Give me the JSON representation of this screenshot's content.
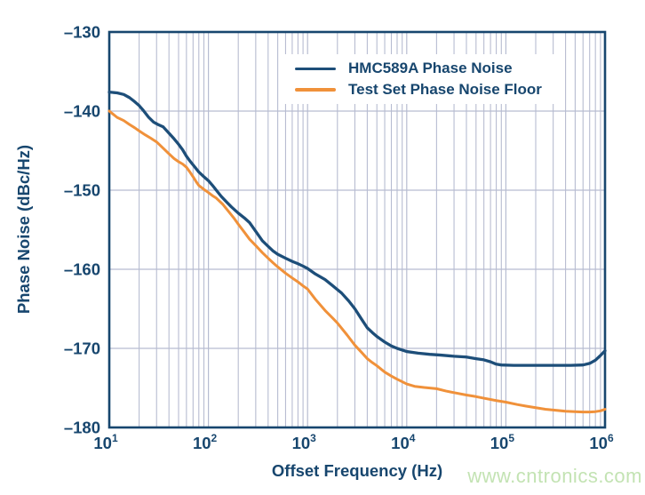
{
  "page": {
    "background": "#ffffff"
  },
  "axes": {
    "y_axis_title": "Phase Noise (dBc/Hz)",
    "x_axis_title": "Offset Frequency (Hz)",
    "y_tick_labels": [
      "–130",
      "–140",
      "–150",
      "–160",
      "–170",
      "–180"
    ],
    "x_tick_labels": [
      {
        "base": "10",
        "exp": "1"
      },
      {
        "base": "10",
        "exp": "2"
      },
      {
        "base": "10",
        "exp": "3"
      },
      {
        "base": "10",
        "exp": "4"
      },
      {
        "base": "10",
        "exp": "5"
      },
      {
        "base": "10",
        "exp": "6"
      }
    ]
  },
  "legend": {
    "items": [
      {
        "label": "HMC589A Phase Noise",
        "color": "#1d4e79"
      },
      {
        "label": "Test Set Phase Noise Floor",
        "color": "#f0913a"
      }
    ]
  },
  "watermark": {
    "text": "www.cntronics.com",
    "color": "#c3e3b3"
  },
  "colors": {
    "axis_navy": "#17466e",
    "curve_navy": "#1d4e79",
    "curve_orange": "#f0913a",
    "gridline": "#b7bcd1",
    "watermark_green": "#c3e3b3"
  },
  "chart_data": {
    "type": "line",
    "title": "",
    "xlabel": "Offset Frequency (Hz)",
    "ylabel": "Phase Noise (dBc/Hz)",
    "x_scale": "log",
    "xlim": [
      10,
      1000000
    ],
    "ylim": [
      -180,
      -130
    ],
    "y_tick_step": 10,
    "grid": true,
    "legend_position": "top-center-inside",
    "series": [
      {
        "name": "HMC589A Phase Noise",
        "color": "#1d4e79",
        "points": [
          [
            10,
            -137.6
          ],
          [
            12,
            -137.7
          ],
          [
            14,
            -137.9
          ],
          [
            16,
            -138.3
          ],
          [
            18,
            -138.8
          ],
          [
            20,
            -139.3
          ],
          [
            22,
            -139.9
          ],
          [
            25,
            -140.8
          ],
          [
            28,
            -141.4
          ],
          [
            31,
            -141.7
          ],
          [
            35,
            -142.0
          ],
          [
            40,
            -142.8
          ],
          [
            45,
            -143.5
          ],
          [
            50,
            -144.2
          ],
          [
            55,
            -144.9
          ],
          [
            60,
            -145.7
          ],
          [
            65,
            -146.3
          ],
          [
            70,
            -146.8
          ],
          [
            80,
            -147.7
          ],
          [
            90,
            -148.3
          ],
          [
            100,
            -148.8
          ],
          [
            110,
            -149.4
          ],
          [
            120,
            -150.0
          ],
          [
            135,
            -150.8
          ],
          [
            150,
            -151.4
          ],
          [
            170,
            -152.1
          ],
          [
            200,
            -152.9
          ],
          [
            230,
            -153.5
          ],
          [
            260,
            -154.1
          ],
          [
            300,
            -155.2
          ],
          [
            350,
            -156.4
          ],
          [
            400,
            -157.1
          ],
          [
            450,
            -157.7
          ],
          [
            500,
            -158.1
          ],
          [
            600,
            -158.6
          ],
          [
            700,
            -159.0
          ],
          [
            800,
            -159.3
          ],
          [
            900,
            -159.6
          ],
          [
            1000,
            -159.9
          ],
          [
            1200,
            -160.6
          ],
          [
            1500,
            -161.3
          ],
          [
            1800,
            -162.1
          ],
          [
            2200,
            -163.0
          ],
          [
            2600,
            -164.0
          ],
          [
            3000,
            -165.0
          ],
          [
            3500,
            -166.3
          ],
          [
            4000,
            -167.4
          ],
          [
            4500,
            -168.0
          ],
          [
            5000,
            -168.5
          ],
          [
            6000,
            -169.2
          ],
          [
            7000,
            -169.7
          ],
          [
            8000,
            -170.0
          ],
          [
            10000,
            -170.4
          ],
          [
            13000,
            -170.6
          ],
          [
            17000,
            -170.75
          ],
          [
            22000,
            -170.85
          ],
          [
            30000,
            -171.0
          ],
          [
            40000,
            -171.1
          ],
          [
            50000,
            -171.3
          ],
          [
            60000,
            -171.45
          ],
          [
            70000,
            -171.7
          ],
          [
            80000,
            -172.0
          ],
          [
            90000,
            -172.1
          ],
          [
            120000,
            -172.15
          ],
          [
            200000,
            -172.15
          ],
          [
            300000,
            -172.15
          ],
          [
            450000,
            -172.15
          ],
          [
            600000,
            -172.1
          ],
          [
            700000,
            -171.9
          ],
          [
            800000,
            -171.5
          ],
          [
            900000,
            -170.9
          ],
          [
            1000000,
            -170.3
          ]
        ]
      },
      {
        "name": "Test Set Phase Noise Floor",
        "color": "#f0913a",
        "points": [
          [
            10,
            -140.0
          ],
          [
            12,
            -140.8
          ],
          [
            14,
            -141.2
          ],
          [
            16,
            -141.7
          ],
          [
            18,
            -142.1
          ],
          [
            20,
            -142.5
          ],
          [
            23,
            -143.0
          ],
          [
            26,
            -143.4
          ],
          [
            30,
            -143.9
          ],
          [
            35,
            -144.7
          ],
          [
            40,
            -145.4
          ],
          [
            45,
            -146.0
          ],
          [
            50,
            -146.4
          ],
          [
            55,
            -146.7
          ],
          [
            60,
            -147.1
          ],
          [
            65,
            -147.7
          ],
          [
            70,
            -148.3
          ],
          [
            75,
            -148.9
          ],
          [
            80,
            -149.4
          ],
          [
            90,
            -149.9
          ],
          [
            100,
            -150.3
          ],
          [
            110,
            -150.7
          ],
          [
            120,
            -151.0
          ],
          [
            140,
            -151.8
          ],
          [
            160,
            -152.7
          ],
          [
            180,
            -153.5
          ],
          [
            200,
            -154.3
          ],
          [
            230,
            -155.3
          ],
          [
            260,
            -156.2
          ],
          [
            300,
            -157.0
          ],
          [
            350,
            -157.9
          ],
          [
            400,
            -158.6
          ],
          [
            450,
            -159.2
          ],
          [
            500,
            -159.7
          ],
          [
            600,
            -160.5
          ],
          [
            700,
            -161.1
          ],
          [
            800,
            -161.6
          ],
          [
            900,
            -162.1
          ],
          [
            1000,
            -162.5
          ],
          [
            1200,
            -163.8
          ],
          [
            1500,
            -165.2
          ],
          [
            1800,
            -166.2
          ],
          [
            2000,
            -166.8
          ],
          [
            2500,
            -168.3
          ],
          [
            3000,
            -169.6
          ],
          [
            3500,
            -170.5
          ],
          [
            4000,
            -171.3
          ],
          [
            4500,
            -171.8
          ],
          [
            5000,
            -172.2
          ],
          [
            6000,
            -173.0
          ],
          [
            7000,
            -173.5
          ],
          [
            8000,
            -173.9
          ],
          [
            10000,
            -174.5
          ],
          [
            12000,
            -174.8
          ],
          [
            15000,
            -174.95
          ],
          [
            20000,
            -175.1
          ],
          [
            25000,
            -175.4
          ],
          [
            30000,
            -175.6
          ],
          [
            40000,
            -175.9
          ],
          [
            50000,
            -176.1
          ],
          [
            60000,
            -176.3
          ],
          [
            80000,
            -176.6
          ],
          [
            100000,
            -176.8
          ],
          [
            130000,
            -177.1
          ],
          [
            160000,
            -177.3
          ],
          [
            200000,
            -177.5
          ],
          [
            250000,
            -177.7
          ],
          [
            300000,
            -177.8
          ],
          [
            400000,
            -177.95
          ],
          [
            500000,
            -178.0
          ],
          [
            600000,
            -178.05
          ],
          [
            700000,
            -178.05
          ],
          [
            800000,
            -178.0
          ],
          [
            900000,
            -177.9
          ],
          [
            1000000,
            -177.7
          ]
        ]
      }
    ]
  }
}
